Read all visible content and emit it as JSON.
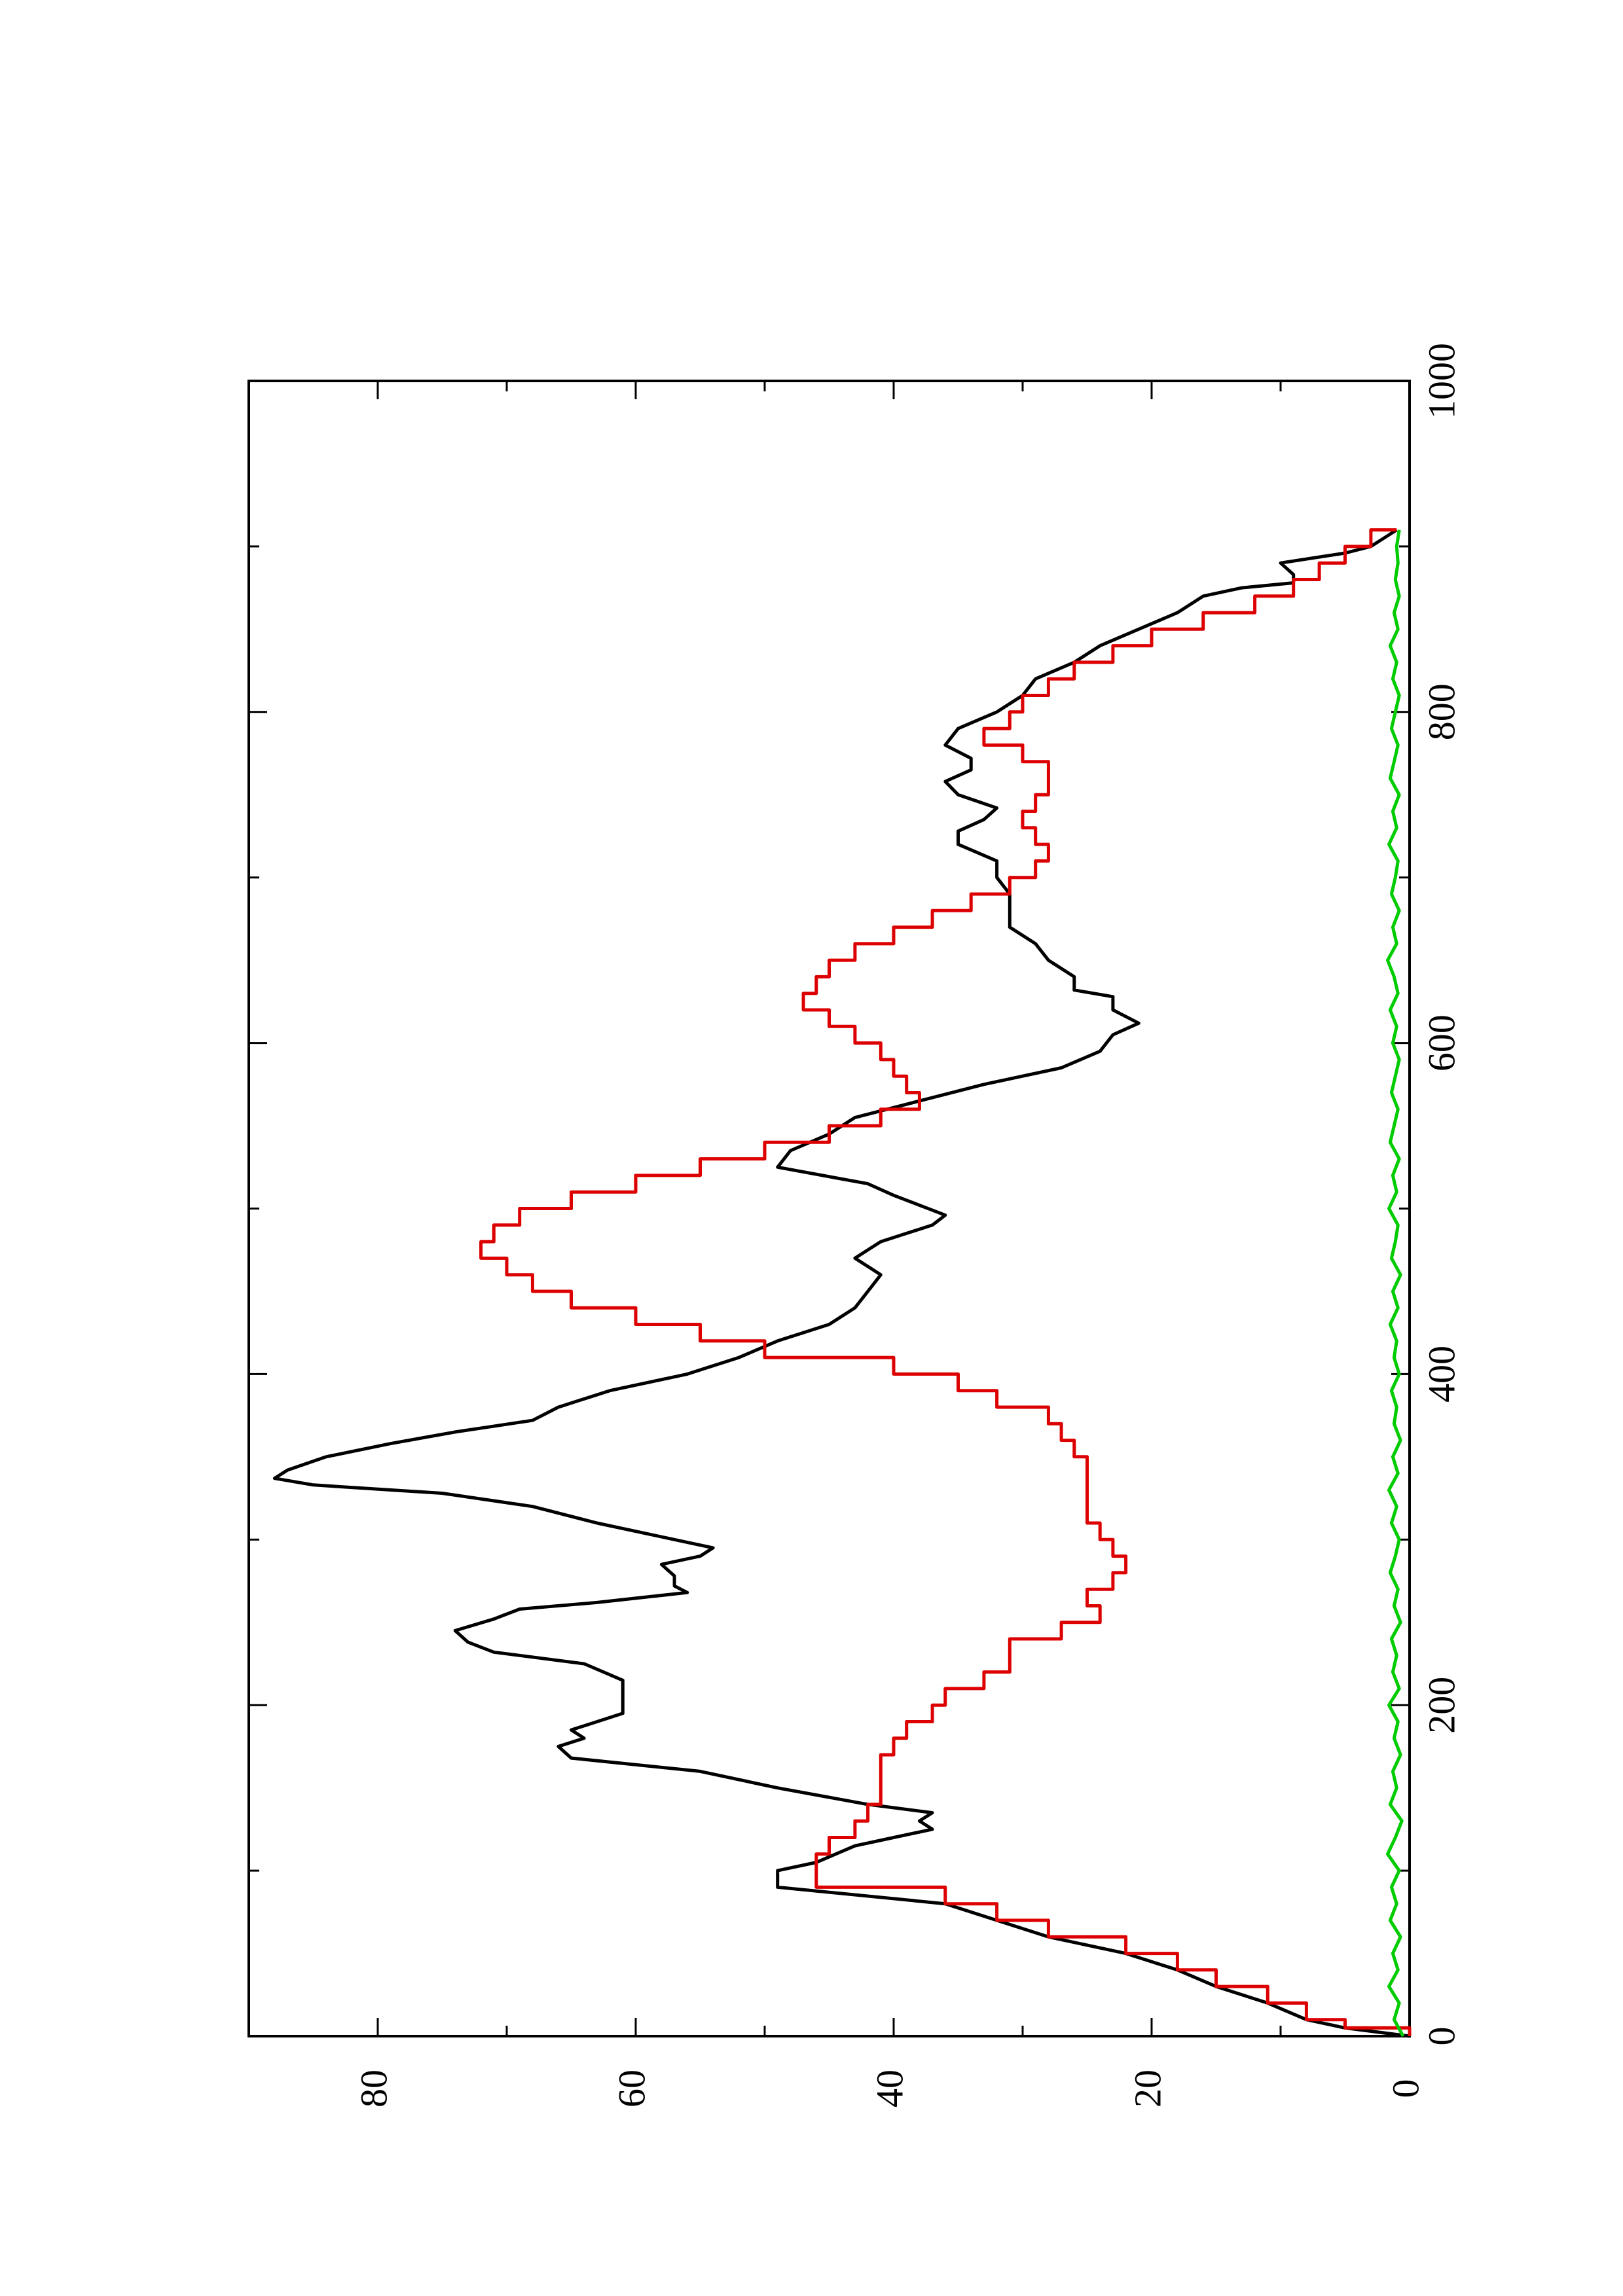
{
  "chart_data": {
    "type": "line",
    "xlim": [
      0,
      1000
    ],
    "ylim": [
      0,
      90
    ],
    "x_ticks": [
      0,
      200,
      400,
      600,
      800,
      1000
    ],
    "x_minor_ticks": [
      100,
      300,
      500,
      700,
      900
    ],
    "y_ticks": [
      0,
      20,
      40,
      60,
      80
    ],
    "y_minor_ticks": [
      10,
      30,
      50,
      70
    ],
    "x_tick_labels": [
      "0",
      "200",
      "400",
      "600",
      "800",
      "1000"
    ],
    "y_tick_labels": [
      "0",
      "20",
      "40",
      "60",
      "80"
    ],
    "rotation": "page rotated 90 degrees counter-clockwise",
    "grid": false,
    "legend": "none",
    "series": [
      {
        "color": "#000000",
        "step": false,
        "points": [
          [
            0,
            0
          ],
          [
            5,
            5
          ],
          [
            10,
            8
          ],
          [
            20,
            11
          ],
          [
            30,
            15
          ],
          [
            40,
            18
          ],
          [
            50,
            22
          ],
          [
            60,
            28
          ],
          [
            70,
            32
          ],
          [
            80,
            36
          ],
          [
            90,
            49
          ],
          [
            100,
            49
          ],
          [
            105,
            46
          ],
          [
            115,
            43
          ],
          [
            120,
            40
          ],
          [
            125,
            37
          ],
          [
            130,
            38
          ],
          [
            135,
            37
          ],
          [
            140,
            42
          ],
          [
            150,
            49
          ],
          [
            160,
            55
          ],
          [
            168,
            65
          ],
          [
            175,
            66
          ],
          [
            180,
            64
          ],
          [
            185,
            65
          ],
          [
            190,
            63
          ],
          [
            195,
            61
          ],
          [
            215,
            61
          ],
          [
            225,
            64
          ],
          [
            232,
            71
          ],
          [
            238,
            73
          ],
          [
            245,
            74
          ],
          [
            252,
            71
          ],
          [
            258,
            69
          ],
          [
            262,
            63
          ],
          [
            268,
            56
          ],
          [
            272,
            57
          ],
          [
            278,
            57
          ],
          [
            285,
            58
          ],
          [
            290,
            55
          ],
          [
            295,
            54
          ],
          [
            300,
            57
          ],
          [
            310,
            63
          ],
          [
            320,
            68
          ],
          [
            328,
            75
          ],
          [
            333,
            85
          ],
          [
            337,
            88
          ],
          [
            342,
            87
          ],
          [
            350,
            84
          ],
          [
            358,
            79
          ],
          [
            365,
            74
          ],
          [
            372,
            68
          ],
          [
            380,
            66
          ],
          [
            390,
            62
          ],
          [
            400,
            56
          ],
          [
            410,
            52
          ],
          [
            420,
            49
          ],
          [
            430,
            45
          ],
          [
            440,
            43
          ],
          [
            450,
            42
          ],
          [
            460,
            41
          ],
          [
            465,
            42
          ],
          [
            470,
            43
          ],
          [
            475,
            42
          ],
          [
            480,
            41
          ],
          [
            485,
            39
          ],
          [
            490,
            37
          ],
          [
            496,
            36
          ],
          [
            502,
            38
          ],
          [
            508,
            40
          ],
          [
            515,
            42
          ],
          [
            525,
            49
          ],
          [
            535,
            48
          ],
          [
            545,
            45
          ],
          [
            555,
            43
          ],
          [
            565,
            38
          ],
          [
            575,
            33
          ],
          [
            585,
            27
          ],
          [
            595,
            24
          ],
          [
            605,
            23
          ],
          [
            612,
            21
          ],
          [
            620,
            23
          ],
          [
            628,
            23
          ],
          [
            632,
            26
          ],
          [
            640,
            26
          ],
          [
            650,
            28
          ],
          [
            660,
            29
          ],
          [
            670,
            31
          ],
          [
            680,
            31
          ],
          [
            690,
            31
          ],
          [
            700,
            32
          ],
          [
            710,
            32
          ],
          [
            720,
            35
          ],
          [
            728,
            35
          ],
          [
            735,
            33
          ],
          [
            742,
            32
          ],
          [
            750,
            35
          ],
          [
            758,
            36
          ],
          [
            765,
            34
          ],
          [
            772,
            34
          ],
          [
            780,
            36
          ],
          [
            790,
            35
          ],
          [
            800,
            32
          ],
          [
            810,
            30
          ],
          [
            820,
            29
          ],
          [
            830,
            26
          ],
          [
            840,
            24
          ],
          [
            850,
            21
          ],
          [
            860,
            18
          ],
          [
            870,
            16
          ],
          [
            875,
            13
          ],
          [
            878,
            9
          ],
          [
            883,
            9
          ],
          [
            890,
            10
          ],
          [
            896,
            5
          ],
          [
            900,
            3
          ],
          [
            905,
            2
          ],
          [
            910,
            1
          ]
        ]
      },
      {
        "color": "#dd0000",
        "step": true,
        "points": [
          [
            0,
            0
          ],
          [
            5,
            5
          ],
          [
            10,
            8
          ],
          [
            20,
            11
          ],
          [
            30,
            15
          ],
          [
            40,
            18
          ],
          [
            50,
            22
          ],
          [
            60,
            28
          ],
          [
            70,
            32
          ],
          [
            80,
            36
          ],
          [
            90,
            46
          ],
          [
            100,
            46
          ],
          [
            110,
            45
          ],
          [
            120,
            43
          ],
          [
            130,
            42
          ],
          [
            140,
            41
          ],
          [
            150,
            41
          ],
          [
            160,
            41
          ],
          [
            170,
            40
          ],
          [
            180,
            39
          ],
          [
            190,
            37
          ],
          [
            200,
            36
          ],
          [
            210,
            33
          ],
          [
            220,
            31
          ],
          [
            230,
            31
          ],
          [
            240,
            27
          ],
          [
            250,
            24
          ],
          [
            260,
            25
          ],
          [
            270,
            23
          ],
          [
            280,
            22
          ],
          [
            290,
            23
          ],
          [
            300,
            24
          ],
          [
            310,
            25
          ],
          [
            320,
            25
          ],
          [
            330,
            25
          ],
          [
            340,
            25
          ],
          [
            350,
            26
          ],
          [
            360,
            27
          ],
          [
            370,
            28
          ],
          [
            380,
            32
          ],
          [
            390,
            35
          ],
          [
            400,
            40
          ],
          [
            410,
            50
          ],
          [
            420,
            55
          ],
          [
            430,
            60
          ],
          [
            440,
            65
          ],
          [
            450,
            68
          ],
          [
            460,
            70
          ],
          [
            470,
            72
          ],
          [
            480,
            71
          ],
          [
            490,
            69
          ],
          [
            500,
            65
          ],
          [
            510,
            60
          ],
          [
            520,
            55
          ],
          [
            530,
            50
          ],
          [
            540,
            45
          ],
          [
            550,
            41
          ],
          [
            560,
            38
          ],
          [
            570,
            39
          ],
          [
            580,
            40
          ],
          [
            590,
            41
          ],
          [
            600,
            43
          ],
          [
            610,
            45
          ],
          [
            620,
            47
          ],
          [
            630,
            46
          ],
          [
            640,
            45
          ],
          [
            650,
            43
          ],
          [
            660,
            40
          ],
          [
            670,
            37
          ],
          [
            680,
            34
          ],
          [
            690,
            31
          ],
          [
            700,
            29
          ],
          [
            710,
            28
          ],
          [
            720,
            29
          ],
          [
            730,
            30
          ],
          [
            740,
            29
          ],
          [
            750,
            28
          ],
          [
            760,
            28
          ],
          [
            770,
            30
          ],
          [
            780,
            33
          ],
          [
            790,
            31
          ],
          [
            800,
            30
          ],
          [
            810,
            28
          ],
          [
            820,
            26
          ],
          [
            830,
            23
          ],
          [
            840,
            20
          ],
          [
            850,
            16
          ],
          [
            860,
            12
          ],
          [
            870,
            9
          ],
          [
            880,
            7
          ],
          [
            890,
            5
          ],
          [
            900,
            3
          ],
          [
            910,
            1
          ]
        ]
      },
      {
        "color": "#00cc00",
        "step": false,
        "points": [
          [
            0,
            0.5
          ],
          [
            10,
            1.2
          ],
          [
            20,
            0.8
          ],
          [
            30,
            1.6
          ],
          [
            40,
            0.9
          ],
          [
            50,
            1.3
          ],
          [
            60,
            0.7
          ],
          [
            70,
            1.5
          ],
          [
            80,
            1.0
          ],
          [
            90,
            1.4
          ],
          [
            100,
            0.8
          ],
          [
            110,
            1.7
          ],
          [
            120,
            1.1
          ],
          [
            130,
            0.6
          ],
          [
            140,
            1.5
          ],
          [
            150,
            1.0
          ],
          [
            160,
            1.3
          ],
          [
            170,
            0.7
          ],
          [
            180,
            1.2
          ],
          [
            190,
            0.9
          ],
          [
            200,
            1.6
          ],
          [
            210,
            0.8
          ],
          [
            220,
            1.3
          ],
          [
            230,
            1.0
          ],
          [
            240,
            1.4
          ],
          [
            250,
            0.7
          ],
          [
            260,
            1.2
          ],
          [
            270,
            0.9
          ],
          [
            280,
            1.5
          ],
          [
            290,
            1.1
          ],
          [
            300,
            0.8
          ],
          [
            310,
            1.4
          ],
          [
            320,
            1.0
          ],
          [
            330,
            1.6
          ],
          [
            340,
            0.9
          ],
          [
            350,
            1.3
          ],
          [
            360,
            0.7
          ],
          [
            370,
            1.2
          ],
          [
            380,
            1.0
          ],
          [
            390,
            1.4
          ],
          [
            400,
            0.8
          ],
          [
            410,
            1.2
          ],
          [
            420,
            1.0
          ],
          [
            430,
            1.5
          ],
          [
            440,
            0.9
          ],
          [
            450,
            1.3
          ],
          [
            460,
            0.7
          ],
          [
            470,
            1.4
          ],
          [
            480,
            1.1
          ],
          [
            490,
            0.9
          ],
          [
            500,
            1.6
          ],
          [
            510,
            1.0
          ],
          [
            520,
            1.3
          ],
          [
            530,
            0.8
          ],
          [
            540,
            1.5
          ],
          [
            550,
            1.2
          ],
          [
            560,
            0.9
          ],
          [
            570,
            1.4
          ],
          [
            580,
            1.1
          ],
          [
            590,
            0.8
          ],
          [
            600,
            1.3
          ],
          [
            610,
            1.0
          ],
          [
            620,
            1.5
          ],
          [
            630,
            0.9
          ],
          [
            640,
            1.2
          ],
          [
            650,
            1.7
          ],
          [
            660,
            1.0
          ],
          [
            670,
            1.3
          ],
          [
            680,
            0.8
          ],
          [
            690,
            1.4
          ],
          [
            700,
            1.1
          ],
          [
            710,
            0.9
          ],
          [
            720,
            1.6
          ],
          [
            730,
            1.0
          ],
          [
            740,
            1.3
          ],
          [
            750,
            0.8
          ],
          [
            760,
            1.5
          ],
          [
            770,
            1.2
          ],
          [
            780,
            0.9
          ],
          [
            790,
            1.4
          ],
          [
            800,
            1.1
          ],
          [
            810,
            0.8
          ],
          [
            820,
            1.3
          ],
          [
            830,
            1.0
          ],
          [
            840,
            1.5
          ],
          [
            850,
            0.9
          ],
          [
            860,
            1.2
          ],
          [
            870,
            0.8
          ],
          [
            880,
            1.1
          ],
          [
            890,
            0.9
          ],
          [
            900,
            1.0
          ],
          [
            910,
            0.8
          ]
        ]
      }
    ]
  }
}
